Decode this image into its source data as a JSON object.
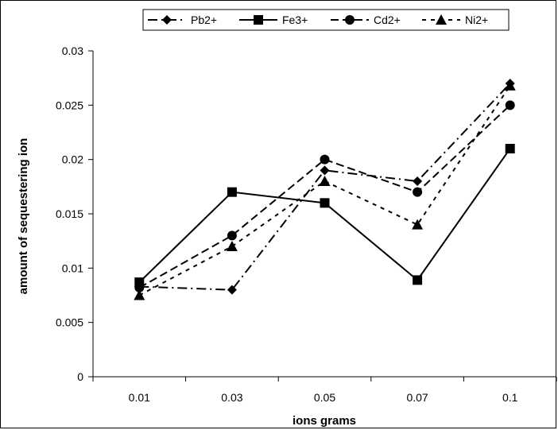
{
  "chart_data": {
    "type": "line",
    "title": "",
    "xlabel": "ions grams",
    "ylabel": "amount of sequestering ion",
    "categories": [
      "0.01",
      "0.03",
      "0.05",
      "0.07",
      "0.1"
    ],
    "ylim": [
      0,
      0.03
    ],
    "yticks": [
      "0",
      "0.005",
      "0.01",
      "0.015",
      "0.02",
      "0.025",
      "0.03"
    ],
    "grid": false,
    "legend_position": "top",
    "series": [
      {
        "name": "Pb2+",
        "marker": "diamond",
        "dash": "long-dash",
        "values": [
          0.0083,
          0.008,
          0.019,
          0.018,
          0.027
        ]
      },
      {
        "name": "Fe3+",
        "marker": "square",
        "dash": "solid",
        "values": [
          0.0087,
          0.017,
          0.016,
          0.0089,
          0.021
        ]
      },
      {
        "name": "Cd2+",
        "marker": "circle",
        "dash": "dash",
        "values": [
          0.0082,
          0.013,
          0.02,
          0.017,
          0.025
        ]
      },
      {
        "name": "Ni2+",
        "marker": "triangle",
        "dash": "dot",
        "values": [
          0.0075,
          0.012,
          0.018,
          0.014,
          0.0268
        ]
      }
    ]
  }
}
